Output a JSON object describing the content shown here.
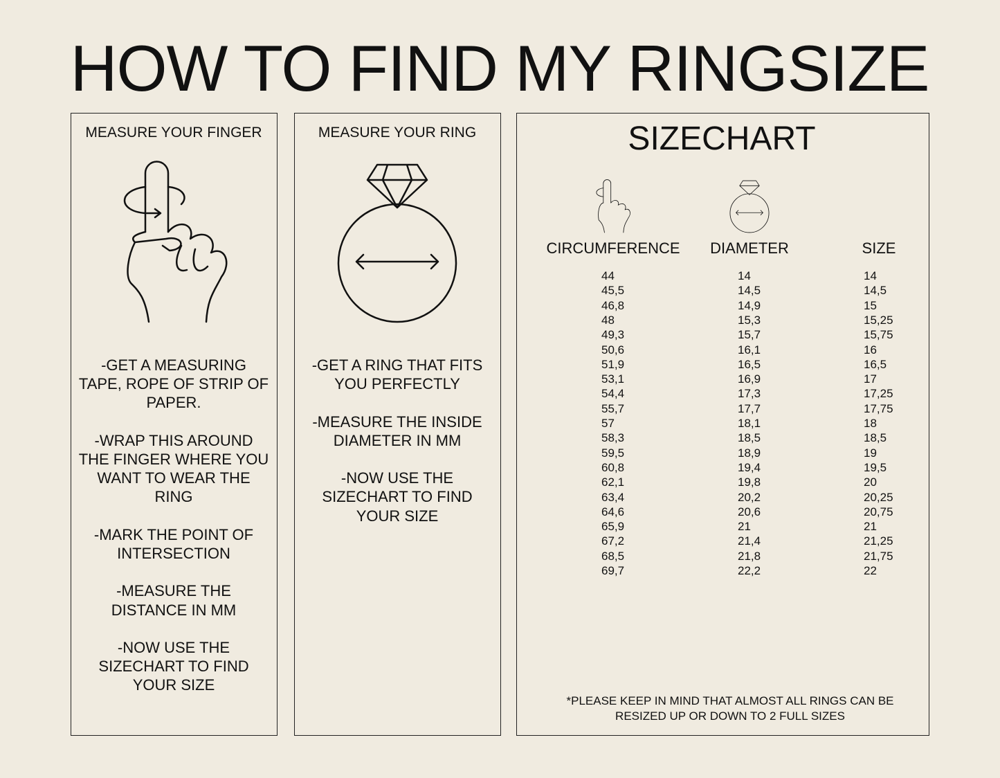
{
  "header": {
    "title": "HOW TO FIND MY RINGSIZE"
  },
  "panels": [
    {
      "heading": "MEASURE YOUR FINGER",
      "paragraphs": [
        [
          "-GET A MEASURING",
          "TAPE, ROPE OF STRIP OF",
          "PAPER."
        ],
        [
          "-WRAP THIS AROUND",
          "THE FINGER WHERE YOU",
          "WANT TO WEAR THE",
          "RING"
        ],
        [
          "-MARK THE POINT OF",
          "INTERSECTION"
        ],
        [
          "-MEASURE THE",
          "DISTANCE IN MM"
        ],
        [
          "-NOW USE THE",
          "SIZECHART TO FIND",
          "YOUR SIZE"
        ]
      ]
    },
    {
      "heading": "MEASURE YOUR RING",
      "paragraphs": [
        [
          "-GET A RING THAT FITS",
          "YOU PERFECTLY"
        ],
        [
          "-MEASURE THE INSIDE",
          "DIAMETER IN MM"
        ],
        [
          "-NOW USE THE",
          "SIZECHART TO FIND",
          "YOUR SIZE"
        ]
      ]
    }
  ],
  "sizechart": {
    "title": "SIZECHART",
    "columns": [
      "CIRCUMFERENCE",
      "DIAMETER",
      "SIZE"
    ],
    "rows": [
      [
        "44",
        "14",
        "14"
      ],
      [
        "45,5",
        "14,5",
        "14,5"
      ],
      [
        "46,8",
        "14,9",
        "15"
      ],
      [
        "48",
        "15,3",
        "15,25"
      ],
      [
        "49,3",
        "15,7",
        "15,75"
      ],
      [
        "50,6",
        "16,1",
        "16"
      ],
      [
        "51,9",
        "16,5",
        "16,5"
      ],
      [
        "53,1",
        "16,9",
        "17"
      ],
      [
        "54,4",
        "17,3",
        "17,25"
      ],
      [
        "55,7",
        "17,7",
        "17,75"
      ],
      [
        "57",
        "18,1",
        "18"
      ],
      [
        "58,3",
        "18,5",
        "18,5"
      ],
      [
        "59,5",
        "18,9",
        "19"
      ],
      [
        "60,8",
        "19,4",
        "19,5"
      ],
      [
        "62,1",
        "19,8",
        "20"
      ],
      [
        "63,4",
        "20,2",
        "20,25"
      ],
      [
        "64,6",
        "20,6",
        "20,75"
      ],
      [
        "65,9",
        "21",
        "21"
      ],
      [
        "67,2",
        "21,4",
        "21,25"
      ],
      [
        "68,5",
        "21,8",
        "21,75"
      ],
      [
        "69,7",
        "22,2",
        "22"
      ]
    ],
    "note": [
      "*PLEASE KEEP IN MIND THAT ALMOST ALL RINGS CAN BE",
      "RESIZED UP OR DOWN TO 2 FULL SIZES"
    ]
  }
}
